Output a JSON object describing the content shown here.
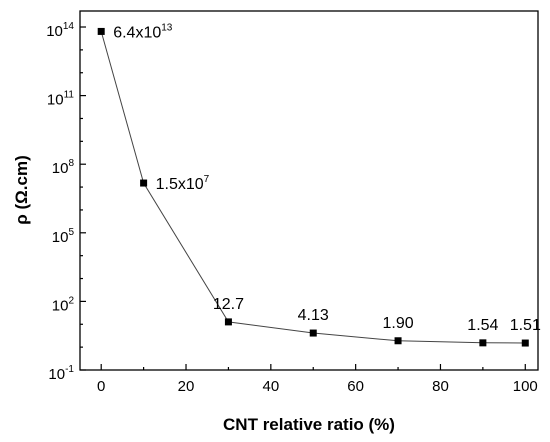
{
  "chart_data": {
    "type": "line",
    "title": "",
    "xlabel": "CNT relative ratio (%)",
    "ylabel": "ρ (Ω.cm)",
    "x_scale": "linear",
    "y_scale": "log",
    "xlim": [
      -5,
      103
    ],
    "ylim_log10": [
      -1,
      14.7
    ],
    "x_ticks": [
      0,
      20,
      40,
      60,
      80,
      100
    ],
    "x_minor_ticks": [
      10,
      30,
      50,
      70,
      90
    ],
    "y_ticks": [
      {
        "base": "10",
        "exp": "-1",
        "value": 0.1
      },
      {
        "base": "10",
        "exp": "2",
        "value": 100
      },
      {
        "base": "10",
        "exp": "5",
        "value": 100000
      },
      {
        "base": "10",
        "exp": "8",
        "value": 100000000
      },
      {
        "base": "10",
        "exp": "11",
        "value": 100000000000
      },
      {
        "base": "10",
        "exp": "14",
        "value": 100000000000000
      }
    ],
    "grid": false,
    "legend": "none",
    "marker": "square",
    "line_color": "#444444",
    "marker_color": "#000000",
    "series": [
      {
        "x": [
          0,
          10,
          30,
          50,
          70,
          90,
          100
        ],
        "y": [
          64000000000000,
          15000000,
          12.7,
          4.13,
          1.9,
          1.54,
          1.51
        ]
      }
    ],
    "annotations": [
      {
        "base": "6.4x10",
        "exp": "13"
      },
      {
        "base": "1.5x10",
        "exp": "7"
      },
      {
        "base": "12.7",
        "exp": ""
      },
      {
        "base": "4.13",
        "exp": ""
      },
      {
        "base": "1.90",
        "exp": ""
      },
      {
        "base": "1.54",
        "exp": ""
      },
      {
        "base": "1.51",
        "exp": ""
      }
    ]
  }
}
